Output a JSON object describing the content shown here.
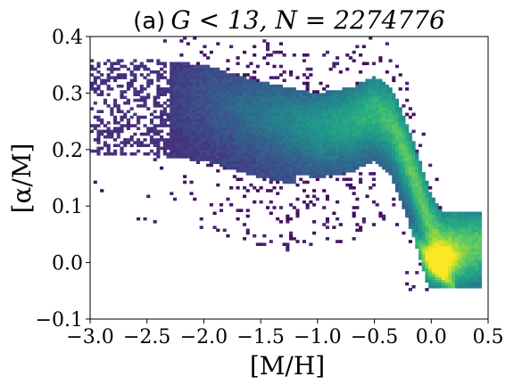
{
  "chart_data": {
    "type": "heatmap",
    "title": {
      "prefix": "(a)",
      "expression": "G < 13, N = 2274776"
    },
    "xlabel": "[M/H]",
    "ylabel": "[α/M]",
    "xlim": [
      -3.0,
      0.5
    ],
    "ylim": [
      -0.1,
      0.4
    ],
    "x_ticks": [
      {
        "value": -3.0,
        "label": "−3.0"
      },
      {
        "value": -2.5,
        "label": "−2.5"
      },
      {
        "value": -2.0,
        "label": "−2.0"
      },
      {
        "value": -1.5,
        "label": "−1.5"
      },
      {
        "value": -1.0,
        "label": "−1.0"
      },
      {
        "value": -0.5,
        "label": "−0.5"
      },
      {
        "value": 0.0,
        "label": "0.0"
      },
      {
        "value": 0.5,
        "label": "0.5"
      }
    ],
    "y_ticks": [
      {
        "value": -0.1,
        "label": "−0.1"
      },
      {
        "value": 0.0,
        "label": "0.0"
      },
      {
        "value": 0.1,
        "label": "0.1"
      },
      {
        "value": 0.2,
        "label": "0.2"
      },
      {
        "value": 0.3,
        "label": "0.3"
      },
      {
        "value": 0.4,
        "label": "0.4"
      }
    ],
    "colormap": "viridis",
    "density_ridge": [
      {
        "x": -2.5,
        "y": 0.3
      },
      {
        "x": -2.0,
        "y": 0.29
      },
      {
        "x": -1.5,
        "y": 0.26
      },
      {
        "x": -1.0,
        "y": 0.24
      },
      {
        "x": -0.7,
        "y": 0.25
      },
      {
        "x": -0.5,
        "y": 0.27
      },
      {
        "x": -0.35,
        "y": 0.25
      },
      {
        "x": -0.2,
        "y": 0.18
      },
      {
        "x": -0.1,
        "y": 0.12
      },
      {
        "x": 0.0,
        "y": 0.06
      },
      {
        "x": 0.1,
        "y": 0.03
      },
      {
        "x": 0.25,
        "y": 0.03
      },
      {
        "x": 0.4,
        "y": 0.03
      }
    ],
    "density_peak": {
      "x": 0.05,
      "y": 0.0
    }
  }
}
